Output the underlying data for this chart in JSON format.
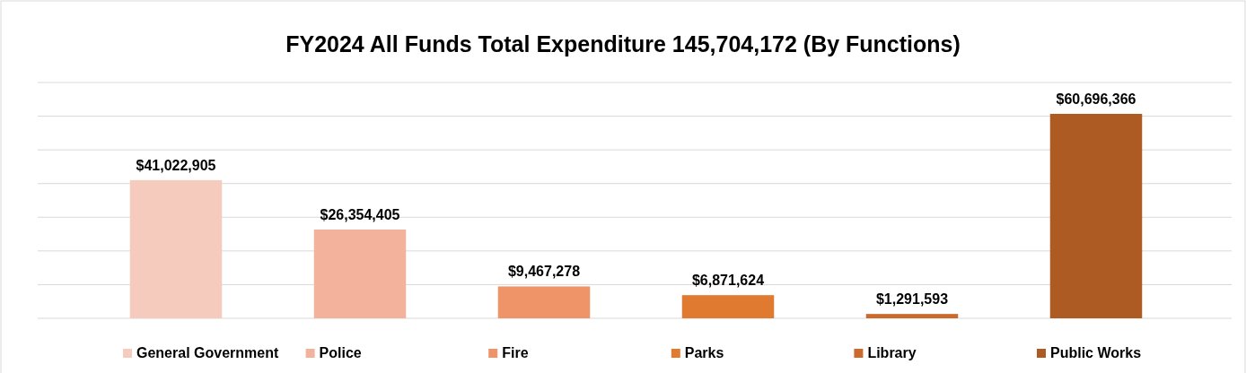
{
  "chart_data": {
    "type": "bar",
    "title": "FY2024 All Funds Total Expenditure 145,704,172 (By Functions)",
    "categories": [
      null,
      null,
      null,
      null,
      null,
      null
    ],
    "stacked": true,
    "series": [
      {
        "name": "General Government",
        "color": "#f5cbbd",
        "values": [
          41022905,
          null,
          null,
          null,
          null,
          null
        ],
        "value_labels": [
          "$41,022,905",
          null,
          null,
          null,
          null,
          null
        ]
      },
      {
        "name": "Police",
        "color": "#f2b29b",
        "values": [
          null,
          26354405,
          null,
          null,
          null,
          null
        ],
        "value_labels": [
          null,
          "$26,354,405",
          null,
          null,
          null,
          null
        ]
      },
      {
        "name": "Fire",
        "color": "#ef9468",
        "values": [
          null,
          null,
          9467278,
          null,
          null,
          null
        ],
        "value_labels": [
          null,
          null,
          "$9,467,278",
          null,
          null,
          null
        ]
      },
      {
        "name": "Parks",
        "color": "#e07a30",
        "values": [
          null,
          null,
          null,
          6871624,
          null,
          null
        ],
        "value_labels": [
          null,
          null,
          null,
          "$6,871,624",
          null,
          null
        ]
      },
      {
        "name": "Library",
        "color": "#cc6a2e",
        "values": [
          null,
          null,
          null,
          null,
          1291593,
          null
        ],
        "value_labels": [
          null,
          null,
          null,
          null,
          "$1,291,593",
          null
        ]
      },
      {
        "name": "Public Works",
        "color": "#ae5a23",
        "values": [
          null,
          null,
          null,
          null,
          null,
          60696366
        ],
        "value_labels": [
          null,
          null,
          null,
          null,
          null,
          "$60,696,366"
        ]
      }
    ],
    "ylim": [
      0,
      70000000
    ],
    "yticks": [
      {
        "value": 0,
        "label": null
      },
      {
        "value": 10000000,
        "label": null
      },
      {
        "value": 20000000,
        "label": null
      },
      {
        "value": 30000000,
        "label": null
      },
      {
        "value": 40000000,
        "label": null
      },
      {
        "value": 50000000,
        "label": null
      },
      {
        "value": 60000000,
        "label": null
      },
      {
        "value": 70000000,
        "label": null
      }
    ],
    "grid": "y",
    "legend": "bottom"
  }
}
